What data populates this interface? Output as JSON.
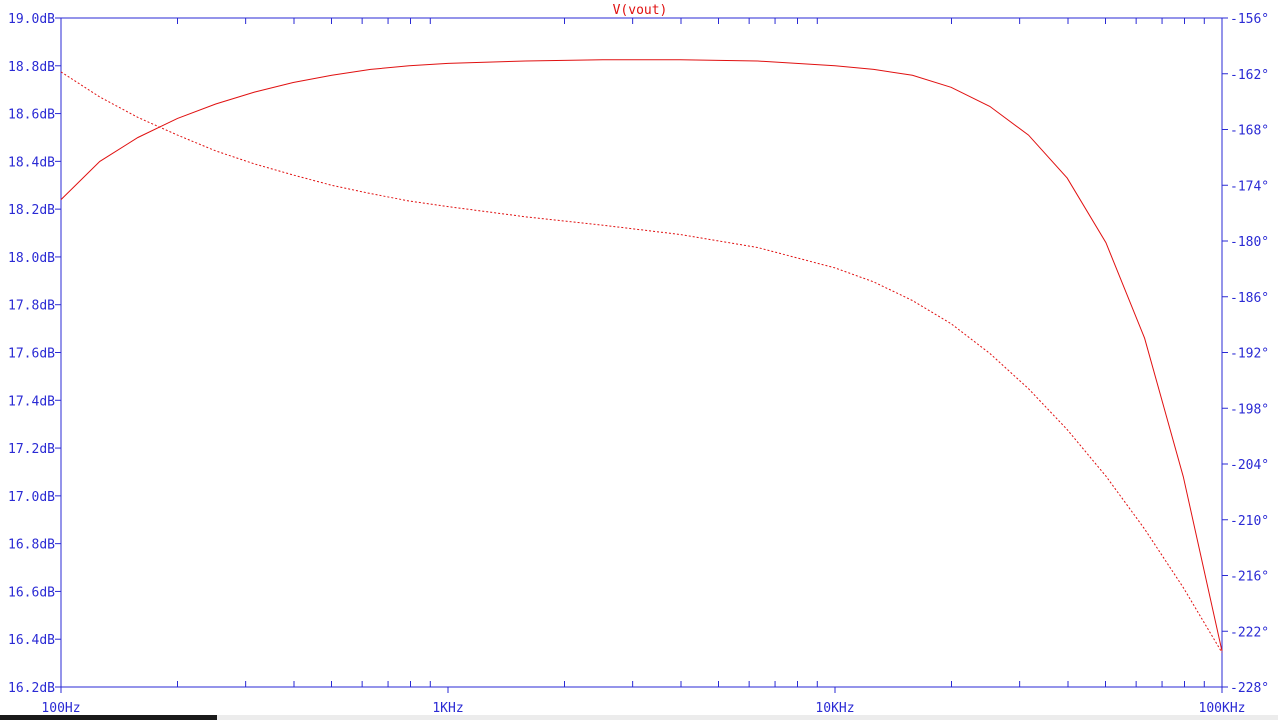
{
  "chart_data": {
    "type": "line",
    "title": "V(vout)",
    "x_scale": "log",
    "xlim": [
      100,
      100000
    ],
    "x_ticks": [
      {
        "value": 100,
        "label": "100Hz"
      },
      {
        "value": 1000,
        "label": "1KHz"
      },
      {
        "value": 10000,
        "label": "10KHz"
      },
      {
        "value": 100000,
        "label": "100KHz"
      }
    ],
    "ylim_left": [
      16.2,
      19.0
    ],
    "y_ticks_left": [
      {
        "value": 19.0,
        "label": "19.0dB"
      },
      {
        "value": 18.8,
        "label": "18.8dB"
      },
      {
        "value": 18.6,
        "label": "18.6dB"
      },
      {
        "value": 18.4,
        "label": "18.4dB"
      },
      {
        "value": 18.2,
        "label": "18.2dB"
      },
      {
        "value": 18.0,
        "label": "18.0dB"
      },
      {
        "value": 17.8,
        "label": "17.8dB"
      },
      {
        "value": 17.6,
        "label": "17.6dB"
      },
      {
        "value": 17.4,
        "label": "17.4dB"
      },
      {
        "value": 17.2,
        "label": "17.2dB"
      },
      {
        "value": 17.0,
        "label": "17.0dB"
      },
      {
        "value": 16.8,
        "label": "16.8dB"
      },
      {
        "value": 16.6,
        "label": "16.6dB"
      },
      {
        "value": 16.4,
        "label": "16.4dB"
      },
      {
        "value": 16.2,
        "label": "16.2dB"
      }
    ],
    "ylim_right": [
      -228,
      -156
    ],
    "y_ticks_right": [
      {
        "value": -156,
        "label": "-156°"
      },
      {
        "value": -162,
        "label": "-162°"
      },
      {
        "value": -168,
        "label": "-168°"
      },
      {
        "value": -174,
        "label": "-174°"
      },
      {
        "value": -180,
        "label": "-180°"
      },
      {
        "value": -186,
        "label": "-186°"
      },
      {
        "value": -192,
        "label": "-192°"
      },
      {
        "value": -198,
        "label": "-198°"
      },
      {
        "value": -204,
        "label": "-204°"
      },
      {
        "value": -210,
        "label": "-210°"
      },
      {
        "value": -216,
        "label": "-216°"
      },
      {
        "value": -222,
        "label": "-222°"
      },
      {
        "value": -228,
        "label": "-228°"
      }
    ],
    "grid": false,
    "colors": {
      "axis": "#2a2ad4",
      "trace": "#e01010"
    },
    "series": [
      {
        "axis": "left",
        "style": "solid",
        "points": [
          [
            100,
            18.24
          ],
          [
            126,
            18.4
          ],
          [
            158,
            18.5
          ],
          [
            200,
            18.58
          ],
          [
            251,
            18.64
          ],
          [
            316,
            18.69
          ],
          [
            398,
            18.73
          ],
          [
            501,
            18.76
          ],
          [
            631,
            18.785
          ],
          [
            794,
            18.8
          ],
          [
            1000,
            18.81
          ],
          [
            1585,
            18.82
          ],
          [
            2512,
            18.825
          ],
          [
            3981,
            18.825
          ],
          [
            6310,
            18.82
          ],
          [
            10000,
            18.8
          ],
          [
            12590,
            18.785
          ],
          [
            15850,
            18.76
          ],
          [
            19950,
            18.71
          ],
          [
            25120,
            18.63
          ],
          [
            31620,
            18.51
          ],
          [
            39810,
            18.33
          ],
          [
            50120,
            18.06
          ],
          [
            63100,
            17.66
          ],
          [
            79430,
            17.08
          ],
          [
            100000,
            16.35
          ]
        ]
      },
      {
        "axis": "right",
        "style": "dashed",
        "points": [
          [
            100,
            -161.8
          ],
          [
            126,
            -164.5
          ],
          [
            158,
            -166.7
          ],
          [
            200,
            -168.6
          ],
          [
            251,
            -170.3
          ],
          [
            316,
            -171.7
          ],
          [
            398,
            -172.9
          ],
          [
            501,
            -174.0
          ],
          [
            631,
            -174.9
          ],
          [
            794,
            -175.7
          ],
          [
            1000,
            -176.3
          ],
          [
            1585,
            -177.4
          ],
          [
            2512,
            -178.3
          ],
          [
            3981,
            -179.3
          ],
          [
            6310,
            -180.7
          ],
          [
            10000,
            -182.9
          ],
          [
            12590,
            -184.4
          ],
          [
            15850,
            -186.4
          ],
          [
            19950,
            -188.9
          ],
          [
            25120,
            -192.1
          ],
          [
            31620,
            -195.9
          ],
          [
            39810,
            -200.3
          ],
          [
            50120,
            -205.3
          ],
          [
            63100,
            -211.0
          ],
          [
            79430,
            -217.3
          ],
          [
            100000,
            -224.3
          ]
        ]
      }
    ]
  }
}
